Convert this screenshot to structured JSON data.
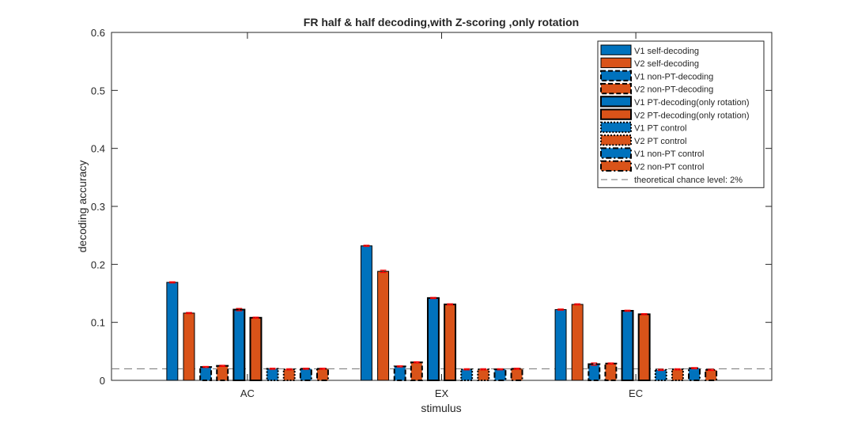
{
  "chart_data": {
    "type": "bar",
    "title": "FR half & half decoding,with Z-scoring ,only rotation",
    "xlabel": "stimulus",
    "ylabel": "decoding accuracy",
    "ylim": [
      0,
      0.6
    ],
    "yticks": [
      0,
      0.1,
      0.2,
      0.3,
      0.4,
      0.5,
      0.6
    ],
    "ytick_labels": [
      "0",
      "0.1",
      "0.2",
      "0.3",
      "0.4",
      "0.5",
      "0.6"
    ],
    "xlim": [
      0.3,
      3.7
    ],
    "grid": false,
    "legend_position": "top-right",
    "categories": [
      "AC",
      "EX",
      "EC"
    ],
    "chance_level": 0.02,
    "chance_label": "theoretical chance level: 2%",
    "colors": {
      "V1": "#0072BD",
      "V2": "#D95319",
      "error_bar": "#FF0000",
      "chance_line": "#707070",
      "axis": "#262626"
    },
    "series": [
      {
        "name": "V1 self-decoding",
        "area": "V1",
        "style": "solid-thin",
        "values": [
          0.169,
          0.232,
          0.122
        ],
        "errors": [
          0.001,
          0.001,
          0.001
        ]
      },
      {
        "name": "V2 self-decoding",
        "area": "V2",
        "style": "solid-thin",
        "values": [
          0.116,
          0.188,
          0.131
        ],
        "errors": [
          0.001,
          0.002,
          0.001
        ]
      },
      {
        "name": "V1 non-PT-decoding",
        "area": "V1",
        "style": "dashed",
        "values": [
          0.023,
          0.024,
          0.028
        ],
        "errors": [
          0.001,
          0.001,
          0.002
        ]
      },
      {
        "name": "V2 non-PT-decoding",
        "area": "V2",
        "style": "dashed",
        "values": [
          0.025,
          0.031,
          0.029
        ],
        "errors": [
          0.001,
          0.001,
          0.001
        ]
      },
      {
        "name": "V1 PT-decoding(only rotation)",
        "area": "V1",
        "style": "solid-thick",
        "values": [
          0.122,
          0.142,
          0.12
        ],
        "errors": [
          0.002,
          0.001,
          0.001
        ]
      },
      {
        "name": "V2 PT-decoding(only rotation)",
        "area": "V2",
        "style": "solid-thick",
        "values": [
          0.108,
          0.131,
          0.114
        ],
        "errors": [
          0.001,
          0.001,
          0.001
        ]
      },
      {
        "name": "V1 PT control",
        "area": "V1",
        "style": "dotted",
        "values": [
          0.02,
          0.019,
          0.018
        ],
        "errors": [
          0.001,
          0.001,
          0.001
        ]
      },
      {
        "name": "V2 PT control",
        "area": "V2",
        "style": "dotted",
        "values": [
          0.019,
          0.019,
          0.019
        ],
        "errors": [
          0.001,
          0.001,
          0.001
        ]
      },
      {
        "name": "V1 non-PT control",
        "area": "V1",
        "style": "dashdot",
        "values": [
          0.02,
          0.019,
          0.021
        ],
        "errors": [
          0.001,
          0.001,
          0.001
        ]
      },
      {
        "name": "V2 non-PT control",
        "area": "V2",
        "style": "dashdot",
        "values": [
          0.02,
          0.02,
          0.018
        ],
        "errors": [
          0.001,
          0.001,
          0.001
        ]
      }
    ]
  }
}
